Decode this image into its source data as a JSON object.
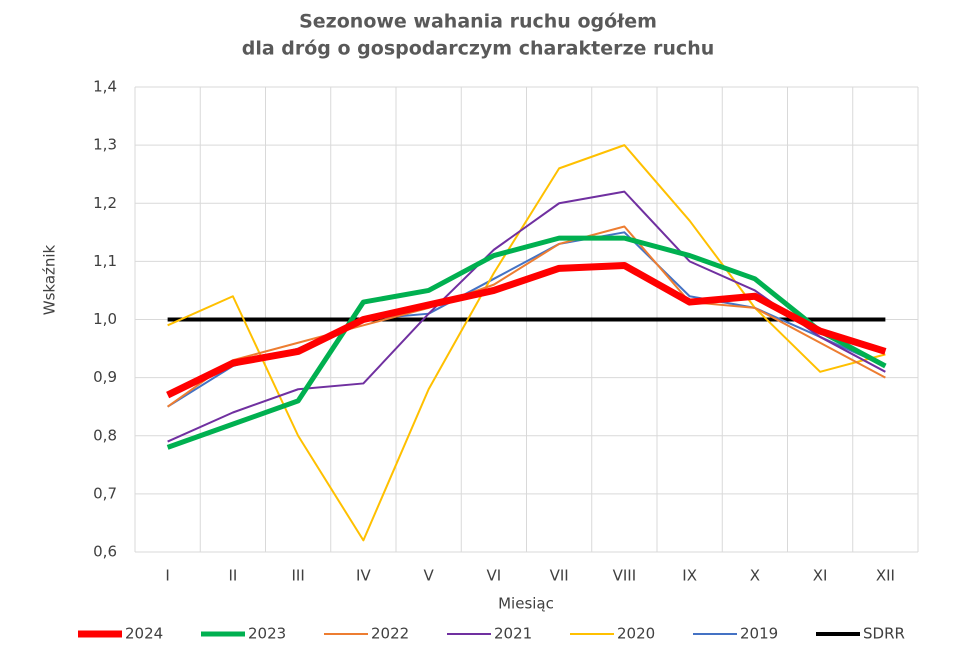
{
  "chart_data": {
    "type": "line",
    "title": [
      "Sezonowe wahania ruchu ogółem",
      "dla dróg o gospodarczym charakterze ruchu"
    ],
    "x_label": "Miesiąc",
    "y_label": "Wskaźnik",
    "categories": [
      "I",
      "II",
      "III",
      "IV",
      "V",
      "VI",
      "VII",
      "VIII",
      "IX",
      "X",
      "XI",
      "XII"
    ],
    "series": [
      {
        "name": "2024",
        "color": "#ff0000",
        "values": [
          0.87,
          0.925,
          0.945,
          1.0,
          1.025,
          1.05,
          1.088,
          1.093,
          1.03,
          1.04,
          0.98,
          0.945
        ]
      },
      {
        "name": "2023",
        "color": "#00b050",
        "values": [
          0.78,
          0.82,
          0.86,
          1.03,
          1.05,
          1.11,
          1.14,
          1.14,
          1.11,
          1.07,
          0.98,
          0.92
        ]
      },
      {
        "name": "2022",
        "color": "#ed7d31",
        "values": [
          0.85,
          0.93,
          0.96,
          0.99,
          1.02,
          1.06,
          1.13,
          1.16,
          1.03,
          1.02,
          0.96,
          0.9
        ]
      },
      {
        "name": "2021",
        "color": "#7030a0",
        "values": [
          0.79,
          0.84,
          0.88,
          0.89,
          1.01,
          1.12,
          1.2,
          1.22,
          1.1,
          1.05,
          0.97,
          0.91
        ]
      },
      {
        "name": "2020",
        "color": "#ffc000",
        "values": [
          0.99,
          1.04,
          0.8,
          0.62,
          0.88,
          1.08,
          1.26,
          1.3,
          1.17,
          1.02,
          0.91,
          0.94
        ]
      },
      {
        "name": "2019",
        "color": "#4472c4",
        "values": [
          0.85,
          0.92,
          0.95,
          1.0,
          1.01,
          1.07,
          1.13,
          1.15,
          1.04,
          1.02,
          0.97,
          0.92
        ]
      },
      {
        "name": "SDRR",
        "color": "#000000",
        "values": [
          1.0,
          1.0,
          1.0,
          1.0,
          1.0,
          1.0,
          1.0,
          1.0,
          1.0,
          1.0,
          1.0,
          1.0
        ]
      }
    ],
    "ylim": [
      0.6,
      1.4
    ],
    "yticks": [
      {
        "value": 0.6,
        "label": "0,6"
      },
      {
        "value": 0.7,
        "label": "0,7"
      },
      {
        "value": 0.8,
        "label": "0,8"
      },
      {
        "value": 0.9,
        "label": "0,9"
      },
      {
        "value": 1.0,
        "label": "1,0"
      },
      {
        "value": 1.1,
        "label": "1,1"
      },
      {
        "value": 1.2,
        "label": "1,2"
      },
      {
        "value": 1.3,
        "label": "1,3"
      },
      {
        "value": 1.4,
        "label": "1,4"
      }
    ],
    "grid": true,
    "legend": "bottom"
  }
}
